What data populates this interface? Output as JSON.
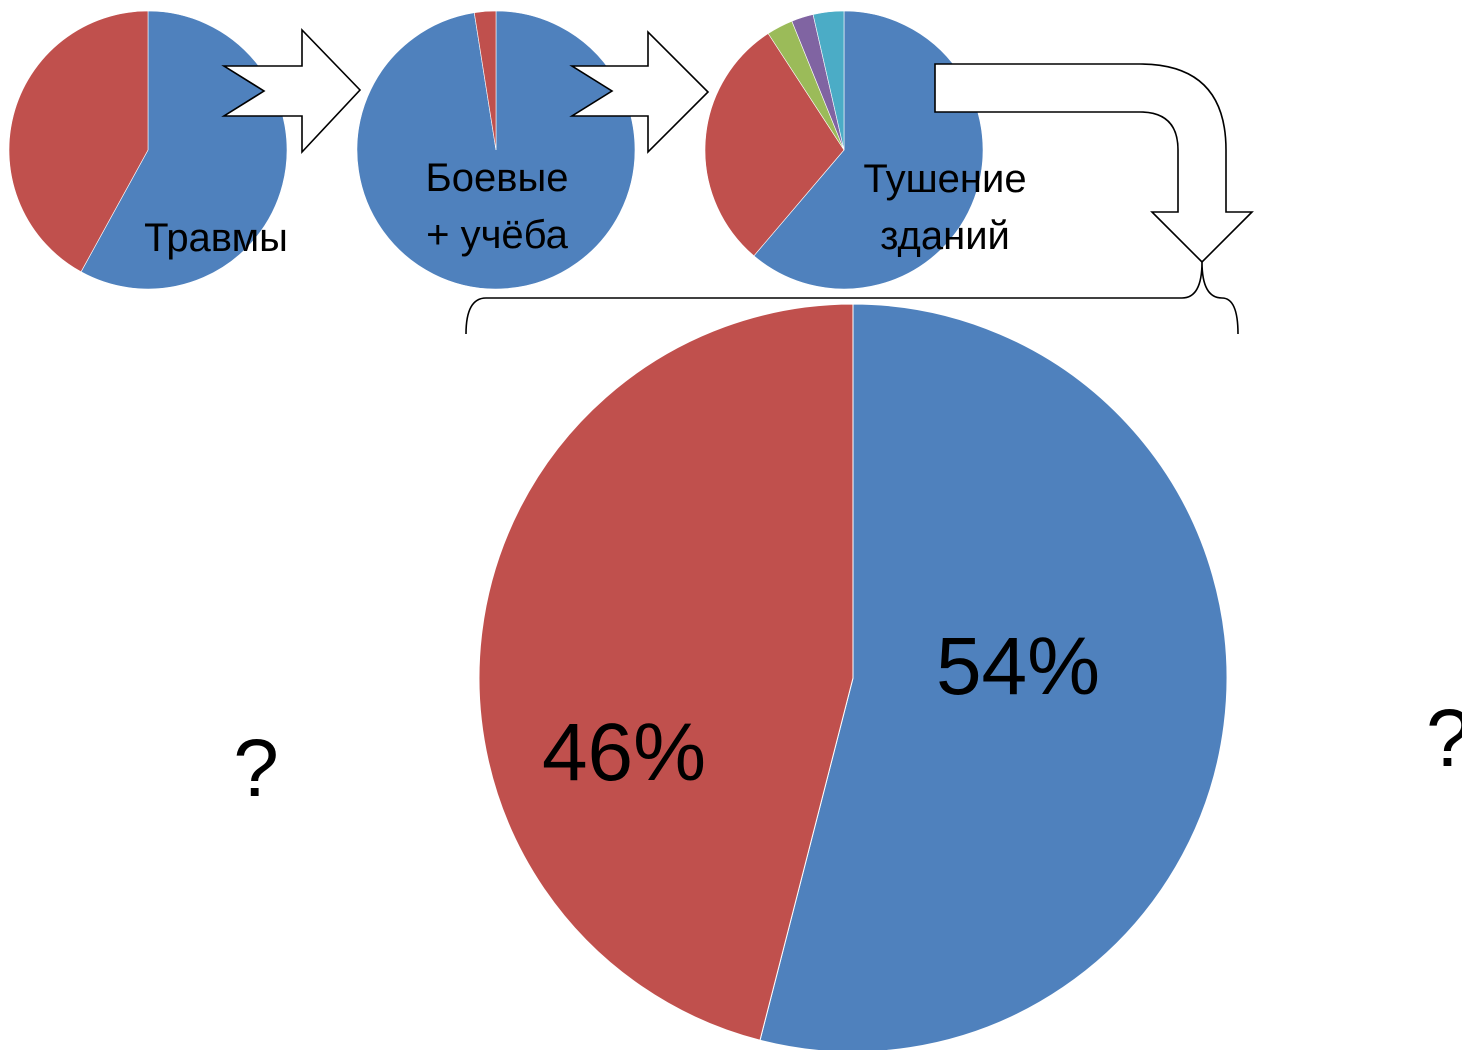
{
  "colors": {
    "blue": "#4f81bd",
    "red": "#c0504d",
    "green": "#9bbb59",
    "purple": "#8064a2",
    "teal": "#4bacc6"
  },
  "chart_data": [
    {
      "type": "pie",
      "label": "Травмы",
      "values": [
        58,
        42
      ],
      "colors": [
        "#4f81bd",
        "#c0504d"
      ]
    },
    {
      "type": "pie",
      "label_lines": [
        "Боевые",
        "+ учёба"
      ],
      "values": [
        97.5,
        2.5
      ],
      "colors": [
        "#4f81bd",
        "#c0504d"
      ]
    },
    {
      "type": "pie",
      "label_lines": [
        "Тушение",
        "зданий"
      ],
      "values": [
        60,
        29,
        3,
        2.5,
        3.5
      ],
      "colors": [
        "#4f81bd",
        "#c0504d",
        "#9bbb59",
        "#8064a2",
        "#4bacc6"
      ]
    },
    {
      "type": "pie",
      "values": [
        54,
        46
      ],
      "labels": [
        "54%",
        "46%"
      ],
      "colors": [
        "#4f81bd",
        "#c0504d"
      ]
    }
  ],
  "question_marks": [
    "?",
    "?"
  ]
}
